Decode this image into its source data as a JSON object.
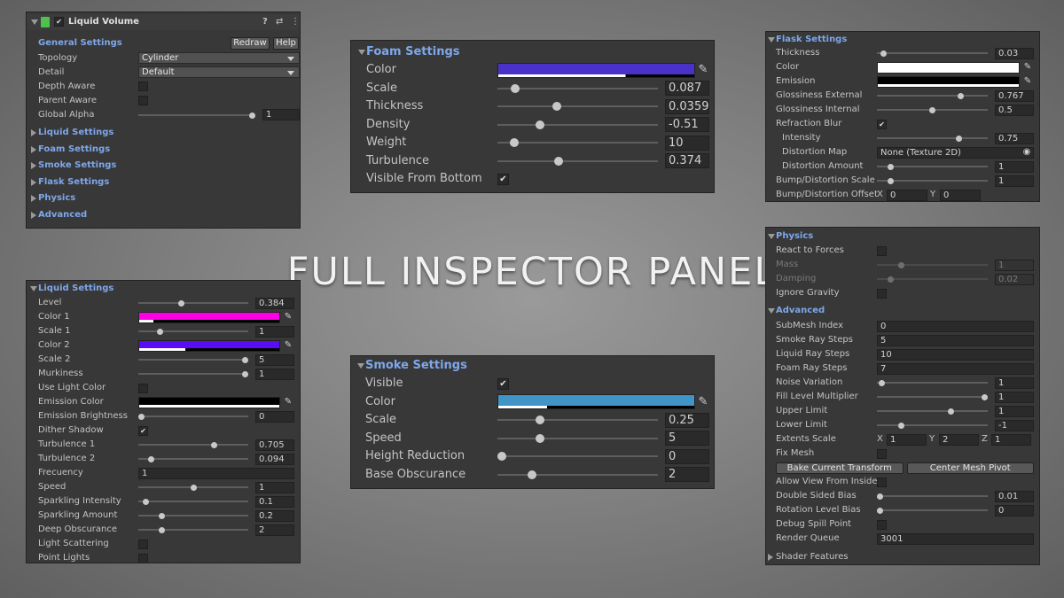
{
  "title": "FULL INSPECTOR PANEL",
  "colors": {
    "panel_bg": "#383838",
    "header_blue": "#7ea7ea",
    "field_bg": "#2a2a2a"
  },
  "main": {
    "component": "Liquid Volume",
    "header_icons": [
      "help-icon",
      "preset-icon",
      "more-icon"
    ],
    "general_settings": "General Settings",
    "redraw": "Redraw",
    "help": "Help",
    "topology_label": "Topology",
    "topology_value": "Cylinder",
    "detail_label": "Detail",
    "detail_value": "Default",
    "depth_aware": "Depth Aware",
    "parent_aware": "Parent Aware",
    "global_alpha_label": "Global Alpha",
    "global_alpha_value": "1",
    "global_alpha_pos": 1,
    "sections": [
      "Liquid Settings",
      "Foam Settings",
      "Smoke Settings",
      "Flask Settings",
      "Physics",
      "Advanced"
    ]
  },
  "liquid": {
    "title": "Liquid Settings",
    "rows": [
      {
        "type": "slider",
        "label": "Level",
        "value": "0.384",
        "pos": 0.384
      },
      {
        "type": "color",
        "label": "Color 1",
        "color": "#ff00e6",
        "alpha": 0.1
      },
      {
        "type": "slider",
        "label": "Scale 1",
        "value": "1",
        "pos": 0.18
      },
      {
        "type": "color",
        "label": "Color 2",
        "color": "#5a0df5",
        "alpha": 0.33
      },
      {
        "type": "slider",
        "label": "Scale 2",
        "value": "5",
        "pos": 1
      },
      {
        "type": "slider",
        "label": "Murkiness",
        "value": "1",
        "pos": 1
      },
      {
        "type": "check",
        "label": "Use Light Color",
        "checked": false
      },
      {
        "type": "color",
        "label": "Emission Color",
        "color": "#000000",
        "alpha": 1
      },
      {
        "type": "slider",
        "label": "Emission Brightness",
        "value": "0",
        "pos": 0
      },
      {
        "type": "check",
        "label": "Dither Shadow",
        "checked": true
      },
      {
        "type": "slider",
        "label": "Turbulence 1",
        "value": "0.705",
        "pos": 0.705
      },
      {
        "type": "slider",
        "label": "Turbulence 2",
        "value": "0.094",
        "pos": 0.094
      },
      {
        "type": "field",
        "label": "Frecuency",
        "value": "1"
      },
      {
        "type": "slider",
        "label": "Speed",
        "value": "1",
        "pos": 0.5
      },
      {
        "type": "slider",
        "label": "Sparkling Intensity",
        "value": "0.1",
        "pos": 0.04
      },
      {
        "type": "slider",
        "label": "Sparkling Amount",
        "value": "0.2",
        "pos": 0.2
      },
      {
        "type": "slider",
        "label": "Deep Obscurance",
        "value": "2",
        "pos": 0.2
      },
      {
        "type": "check",
        "label": "Light Scattering",
        "checked": false
      },
      {
        "type": "check",
        "label": "Point Lights",
        "checked": false
      }
    ]
  },
  "foam": {
    "title": "Foam Settings",
    "rows": [
      {
        "type": "color",
        "label": "Color",
        "color": "#4a32c8",
        "alpha": 0.65
      },
      {
        "type": "slider",
        "label": "Scale",
        "value": "0.087",
        "pos": 0.087
      },
      {
        "type": "slider",
        "label": "Thickness",
        "value": "0.0359",
        "pos": 0.36
      },
      {
        "type": "slider",
        "label": "Density",
        "value": "-0.51",
        "pos": 0.25
      },
      {
        "type": "slider",
        "label": "Weight",
        "value": "10",
        "pos": 0.08
      },
      {
        "type": "slider",
        "label": "Turbulence",
        "value": "0.374",
        "pos": 0.374
      },
      {
        "type": "check",
        "label": "Visible From Bottom",
        "checked": true
      }
    ]
  },
  "smoke": {
    "title": "Smoke Settings",
    "rows": [
      {
        "type": "check",
        "label": "Visible",
        "checked": true
      },
      {
        "type": "color",
        "label": "Color",
        "color": "#3f95c8",
        "alpha": 0.25
      },
      {
        "type": "slider",
        "label": "Scale",
        "value": "0.25",
        "pos": 0.25
      },
      {
        "type": "slider",
        "label": "Speed",
        "value": "5",
        "pos": 0.25
      },
      {
        "type": "slider",
        "label": "Height Reduction",
        "value": "0",
        "pos": 0
      },
      {
        "type": "slider",
        "label": "Base Obscurance",
        "value": "2",
        "pos": 0.2
      }
    ]
  },
  "flask": {
    "title": "Flask Settings",
    "rows": [
      {
        "type": "slider",
        "label": "Thickness",
        "value": "0.03",
        "pos": 0.03
      },
      {
        "type": "color",
        "label": "Color",
        "color": "#ffffff",
        "alpha": 1
      },
      {
        "type": "color",
        "label": "Emission",
        "color": "#000000",
        "alpha": 1
      },
      {
        "type": "slider",
        "label": "Glossiness External",
        "value": "0.767",
        "pos": 0.767
      },
      {
        "type": "slider",
        "label": "Glossiness Internal",
        "value": "0.5",
        "pos": 0.5
      },
      {
        "type": "check",
        "label": "Refraction Blur",
        "checked": true
      },
      {
        "type": "slider",
        "label": "Intensity",
        "value": "0.75",
        "pos": 0.75,
        "indent": true
      },
      {
        "type": "object",
        "label": "Distortion Map",
        "value": "None (Texture 2D)",
        "indent": true
      },
      {
        "type": "slider",
        "label": "Distortion Amount",
        "value": "1",
        "pos": 0.1,
        "indent": true
      },
      {
        "type": "slider",
        "label": "Bump/Distortion Scale",
        "value": "1",
        "pos": 0.1
      },
      {
        "type": "vector",
        "label": "Bump/Distortion Offset",
        "axes": [
          "X",
          "Y"
        ],
        "values": [
          "0",
          "0"
        ]
      }
    ]
  },
  "physics": {
    "title": "Physics",
    "rows": [
      {
        "type": "check",
        "label": "React to Forces",
        "checked": false
      },
      {
        "type": "slider",
        "label": "Mass",
        "value": "1",
        "pos": 0.2,
        "disabled": true
      },
      {
        "type": "slider",
        "label": "Damping",
        "value": "0.02",
        "pos": 0.1,
        "disabled": true
      },
      {
        "type": "check",
        "label": "Ignore Gravity",
        "checked": false
      }
    ],
    "advanced_title": "Advanced",
    "advanced_rows": [
      {
        "type": "field",
        "label": "SubMesh Index",
        "value": "0"
      },
      {
        "type": "field",
        "label": "Smoke Ray Steps",
        "value": "5"
      },
      {
        "type": "field",
        "label": "Liquid Ray Steps",
        "value": "10"
      },
      {
        "type": "field",
        "label": "Foam Ray Steps",
        "value": "7"
      },
      {
        "type": "slider",
        "label": "Noise Variation",
        "value": "1",
        "pos": 0.02
      },
      {
        "type": "slider",
        "label": "Fill Level Multiplier",
        "value": "1",
        "pos": 1
      },
      {
        "type": "slider",
        "label": "Upper Limit",
        "value": "1",
        "pos": 0.68
      },
      {
        "type": "slider",
        "label": "Lower Limit",
        "value": "-1",
        "pos": 0.2
      },
      {
        "type": "vector",
        "label": "Extents Scale",
        "axes": [
          "X",
          "Y",
          "Z"
        ],
        "values": [
          "1",
          "2",
          "1"
        ]
      },
      {
        "type": "check",
        "label": "Fix Mesh",
        "checked": false
      },
      {
        "type": "buttons",
        "labels": [
          "Bake Current Transform",
          "Center Mesh Pivot"
        ]
      },
      {
        "type": "check",
        "label": "Allow View From Inside",
        "checked": false
      },
      {
        "type": "slider",
        "label": "Double Sided Bias",
        "value": "0.01",
        "pos": 0.0
      },
      {
        "type": "slider",
        "label": "Rotation Level Bias",
        "value": "0",
        "pos": 0.0
      },
      {
        "type": "check",
        "label": "Debug Spill Point",
        "checked": false
      },
      {
        "type": "field",
        "label": "Render Queue",
        "value": "3001"
      }
    ],
    "shader_features": "Shader Features"
  }
}
